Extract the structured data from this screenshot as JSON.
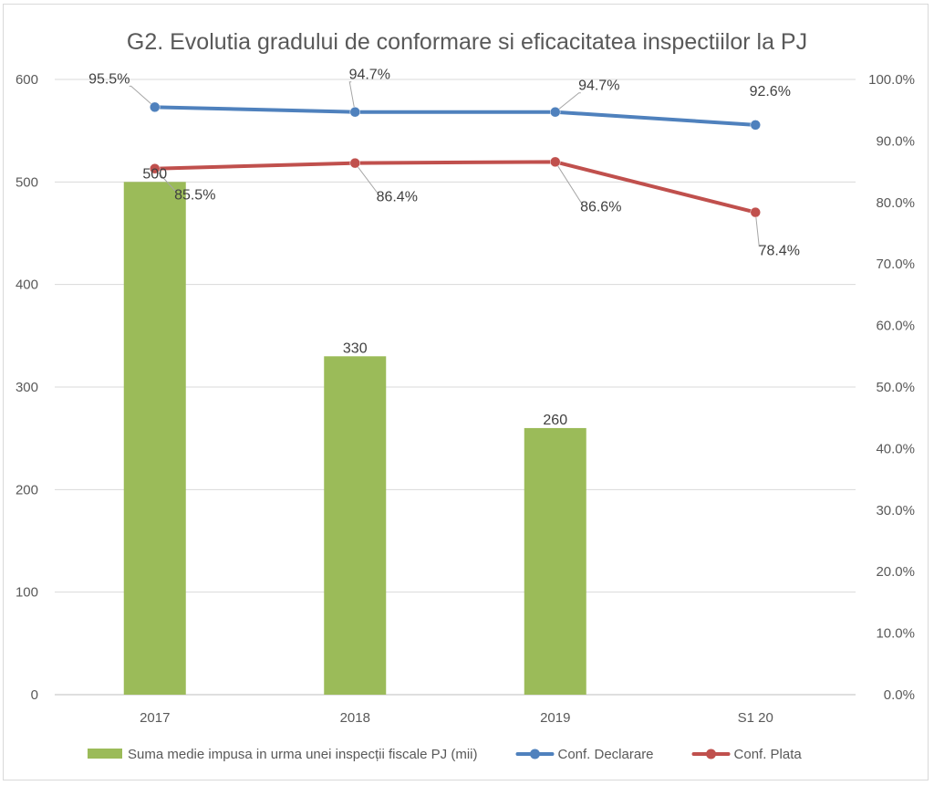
{
  "chart_data": {
    "type": "bar",
    "title": "G2. Evolutia gradului de conformare si eficacitatea inspectiilor la PJ",
    "categories": [
      "2017",
      "2018",
      "2019",
      "S1 20"
    ],
    "y_left": {
      "min": 0,
      "max": 600,
      "step": 100,
      "ticks": [
        "0",
        "100",
        "200",
        "300",
        "400",
        "500",
        "600"
      ]
    },
    "y_right": {
      "min": 0,
      "max": 100,
      "step": 10,
      "ticks": [
        "0.0%",
        "10.0%",
        "20.0%",
        "30.0%",
        "40.0%",
        "50.0%",
        "60.0%",
        "70.0%",
        "80.0%",
        "90.0%",
        "100.0%"
      ]
    },
    "grid": true,
    "legend_position": "bottom",
    "series": [
      {
        "name": "Suma medie impusa in urma unei inspecții fiscale PJ (mii)",
        "kind": "bar",
        "axis": "left",
        "color": "#9bbb59",
        "values": [
          500,
          330,
          260,
          null
        ],
        "labels": [
          "500",
          "330",
          "260",
          ""
        ]
      },
      {
        "name": "Conf. Declarare",
        "kind": "line",
        "axis": "right",
        "color": "#4f81bd",
        "values": [
          95.5,
          94.7,
          94.7,
          92.6
        ],
        "labels": [
          "95.5%",
          "94.7%",
          "94.7%",
          "92.6%"
        ]
      },
      {
        "name": "Conf. Plata",
        "kind": "line",
        "axis": "right",
        "color": "#c0504d",
        "values": [
          85.5,
          86.4,
          86.6,
          78.4
        ],
        "labels": [
          "85.5%",
          "86.4%",
          "86.6%",
          "78.4%"
        ]
      }
    ]
  }
}
